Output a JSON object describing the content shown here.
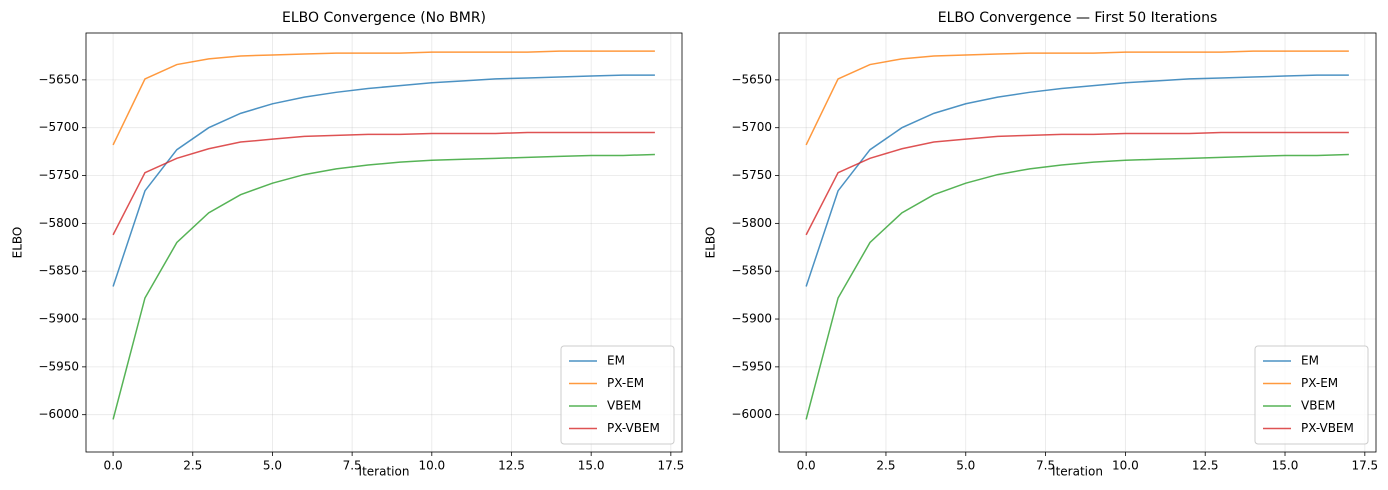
{
  "chart_data": [
    {
      "type": "line",
      "title": "ELBO Convergence (No BMR)",
      "xlabel": "Iteration",
      "ylabel": "ELBO",
      "x": [
        0,
        1,
        2,
        3,
        4,
        5,
        6,
        7,
        8,
        9,
        10,
        11,
        12,
        13,
        14,
        15,
        16,
        17
      ],
      "series": [
        {
          "name": "EM",
          "color": "#1f77b4",
          "values": [
            -5866,
            -5766,
            -5723,
            -5700,
            -5685,
            -5675,
            -5668,
            -5663,
            -5659,
            -5656,
            -5653,
            -5651,
            -5649,
            -5648,
            -5647,
            -5646,
            -5645,
            -5645
          ]
        },
        {
          "name": "PX-EM",
          "color": "#ff7f0e",
          "values": [
            -5718,
            -5649,
            -5634,
            -5628,
            -5625,
            -5624,
            -5623,
            -5622,
            -5622,
            -5622,
            -5621,
            -5621,
            -5621,
            -5621,
            -5620,
            -5620,
            -5620,
            -5620
          ]
        },
        {
          "name": "VBEM",
          "color": "#2ca02c",
          "values": [
            -6005,
            -5878,
            -5820,
            -5789,
            -5770,
            -5758,
            -5749,
            -5743,
            -5739,
            -5736,
            -5734,
            -5733,
            -5732,
            -5731,
            -5730,
            -5729,
            -5729,
            -5728
          ]
        },
        {
          "name": "PX-VBEM",
          "color": "#d62728",
          "values": [
            -5812,
            -5747,
            -5732,
            -5722,
            -5715,
            -5712,
            -5709,
            -5708,
            -5707,
            -5707,
            -5706,
            -5706,
            -5706,
            -5705,
            -5705,
            -5705,
            -5705,
            -5705
          ]
        }
      ],
      "xlim": [
        -0.85,
        17.85
      ],
      "ylim": [
        -6039,
        -5601
      ],
      "xticks": [
        {
          "value": 0,
          "label": "0.0"
        },
        {
          "value": 2.5,
          "label": "2.5"
        },
        {
          "value": 5,
          "label": "5.0"
        },
        {
          "value": 7.5,
          "label": "7.5"
        },
        {
          "value": 10,
          "label": "10.0"
        },
        {
          "value": 12.5,
          "label": "12.5"
        },
        {
          "value": 15,
          "label": "15.0"
        },
        {
          "value": 17.5,
          "label": "17.5"
        }
      ],
      "yticks": [
        {
          "value": -6000,
          "label": "−6000"
        },
        {
          "value": -5950,
          "label": "−5950"
        },
        {
          "value": -5900,
          "label": "−5900"
        },
        {
          "value": -5850,
          "label": "−5850"
        },
        {
          "value": -5800,
          "label": "−5800"
        },
        {
          "value": -5750,
          "label": "−5750"
        },
        {
          "value": -5700,
          "label": "−5700"
        },
        {
          "value": -5650,
          "label": "−5650"
        }
      ],
      "grid": true,
      "legend": "lower right"
    },
    {
      "type": "line",
      "title": "ELBO Convergence — First 50 Iterations",
      "xlabel": "Iteration",
      "ylabel": "ELBO",
      "x": [
        0,
        1,
        2,
        3,
        4,
        5,
        6,
        7,
        8,
        9,
        10,
        11,
        12,
        13,
        14,
        15,
        16,
        17
      ],
      "series": [
        {
          "name": "EM",
          "color": "#1f77b4",
          "values": [
            -5866,
            -5766,
            -5723,
            -5700,
            -5685,
            -5675,
            -5668,
            -5663,
            -5659,
            -5656,
            -5653,
            -5651,
            -5649,
            -5648,
            -5647,
            -5646,
            -5645,
            -5645
          ]
        },
        {
          "name": "PX-EM",
          "color": "#ff7f0e",
          "values": [
            -5718,
            -5649,
            -5634,
            -5628,
            -5625,
            -5624,
            -5623,
            -5622,
            -5622,
            -5622,
            -5621,
            -5621,
            -5621,
            -5621,
            -5620,
            -5620,
            -5620,
            -5620
          ]
        },
        {
          "name": "VBEM",
          "color": "#2ca02c",
          "values": [
            -6005,
            -5878,
            -5820,
            -5789,
            -5770,
            -5758,
            -5749,
            -5743,
            -5739,
            -5736,
            -5734,
            -5733,
            -5732,
            -5731,
            -5730,
            -5729,
            -5729,
            -5728
          ]
        },
        {
          "name": "PX-VBEM",
          "color": "#d62728",
          "values": [
            -5812,
            -5747,
            -5732,
            -5722,
            -5715,
            -5712,
            -5709,
            -5708,
            -5707,
            -5707,
            -5706,
            -5706,
            -5706,
            -5705,
            -5705,
            -5705,
            -5705,
            -5705
          ]
        }
      ],
      "xlim": [
        -0.85,
        17.85
      ],
      "ylim": [
        -6039,
        -5601
      ],
      "xticks": [
        {
          "value": 0,
          "label": "0.0"
        },
        {
          "value": 2.5,
          "label": "2.5"
        },
        {
          "value": 5,
          "label": "5.0"
        },
        {
          "value": 7.5,
          "label": "7.5"
        },
        {
          "value": 10,
          "label": "10.0"
        },
        {
          "value": 12.5,
          "label": "12.5"
        },
        {
          "value": 15,
          "label": "15.0"
        },
        {
          "value": 17.5,
          "label": "17.5"
        }
      ],
      "yticks": [
        {
          "value": -6000,
          "label": "−6000"
        },
        {
          "value": -5950,
          "label": "−5950"
        },
        {
          "value": -5900,
          "label": "−5900"
        },
        {
          "value": -5850,
          "label": "−5850"
        },
        {
          "value": -5800,
          "label": "−5800"
        },
        {
          "value": -5750,
          "label": "−5750"
        },
        {
          "value": -5700,
          "label": "−5700"
        },
        {
          "value": -5650,
          "label": "−5650"
        }
      ],
      "grid": true,
      "legend": "lower right"
    }
  ]
}
